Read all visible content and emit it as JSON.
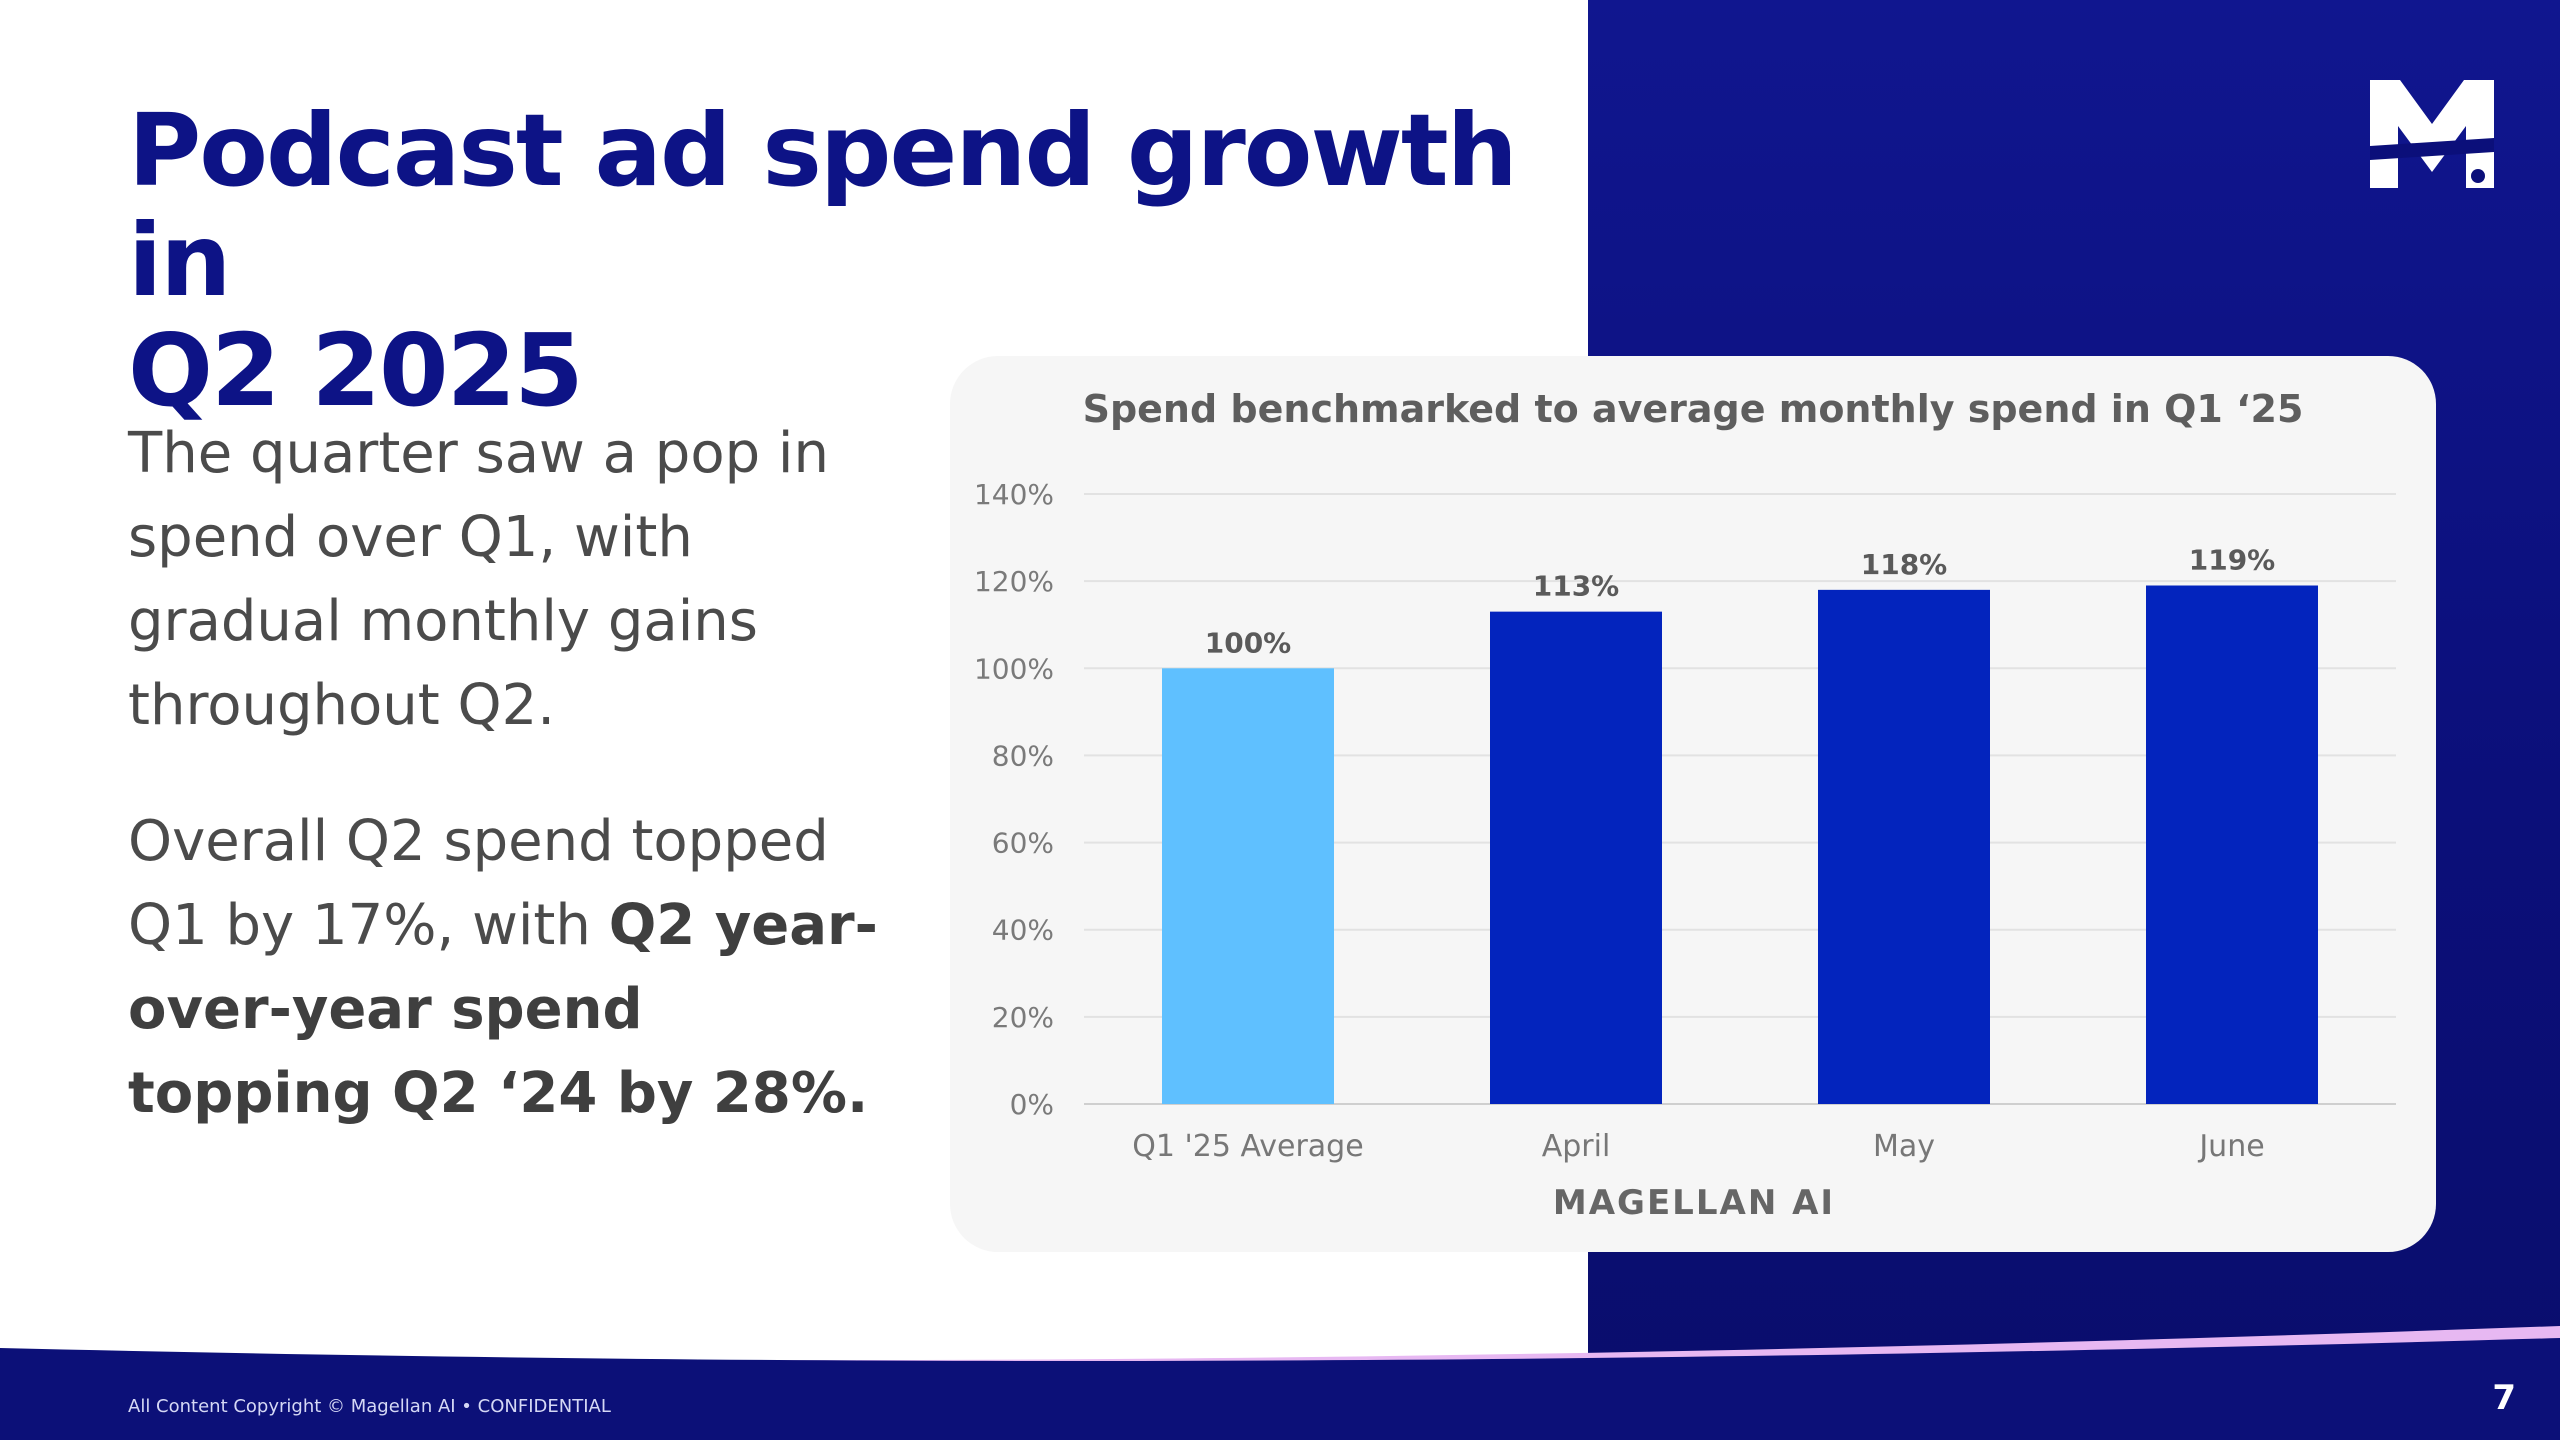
{
  "slide": {
    "title_line1": "Podcast ad spend growth in",
    "title_line2": "Q2 2025",
    "para1": "The quarter saw a pop in spend over Q1, with gradual monthly gains throughout Q2.",
    "para2_regular": "Overall Q2 spend topped Q1 by 17%, with ",
    "para2_bold": "Q2 year-over-year spend topping Q2 ‘24 by 28%.",
    "logo_icon": "magellan-m-logo",
    "footer": "All Content Copyright © Magellan AI • CONFIDENTIAL",
    "page_number": "7"
  },
  "colors": {
    "title": "#0d1386",
    "panel": "#10168f",
    "bar_baseline": "#5fc0ff",
    "bar_month": "#0324bd",
    "accent_wave": "#e7b8f2"
  },
  "chart_data": {
    "type": "bar",
    "title": "Spend benchmarked to average monthly spend in Q1 ‘25",
    "categories": [
      "Q1 '25 Average",
      "April",
      "May",
      "June"
    ],
    "values": [
      100,
      113,
      118,
      119
    ],
    "data_labels": [
      "100%",
      "113%",
      "118%",
      "119%"
    ],
    "bar_colors": [
      "#5fc0ff",
      "#0324bd",
      "#0324bd",
      "#0324bd"
    ],
    "ylim": [
      0,
      140
    ],
    "yticks": [
      0,
      20,
      40,
      60,
      80,
      100,
      120,
      140
    ],
    "ytick_labels": [
      "0%",
      "20%",
      "40%",
      "60%",
      "80%",
      "100%",
      "120%",
      "140%"
    ],
    "grid": true,
    "xlabel": "",
    "ylabel": "",
    "source": "MAGELLAN AI"
  }
}
